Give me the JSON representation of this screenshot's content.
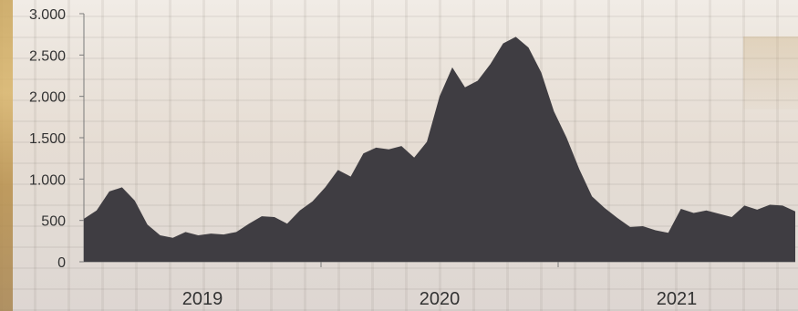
{
  "chart_data": {
    "type": "area",
    "title": "",
    "xlabel": "",
    "ylabel": "",
    "ylim": [
      0,
      3000
    ],
    "yticks": [
      0,
      500,
      1000,
      1500,
      2000,
      2500,
      3000
    ],
    "ytick_labels": [
      "0",
      "500",
      "1.000",
      "1.500",
      "2.000",
      "2.500",
      "3.000"
    ],
    "xtick_labels": [
      "2019",
      "2020",
      "2021"
    ],
    "grid": false,
    "series": [
      {
        "values": [
          520,
          620,
          850,
          900,
          740,
          450,
          320,
          290,
          360,
          320,
          340,
          330,
          360,
          460,
          550,
          540,
          460,
          620,
          730,
          900,
          1110,
          1030,
          1310,
          1380,
          1360,
          1400,
          1260,
          1450,
          2000,
          2350,
          2110,
          2190,
          2390,
          2640,
          2720,
          2590,
          2290,
          1820,
          1500,
          1120,
          790,
          650,
          530,
          420,
          430,
          380,
          350,
          640,
          590,
          620,
          580,
          540,
          680,
          630,
          690,
          680,
          610
        ],
        "color": "#3f3d42"
      }
    ],
    "colors": {
      "area": "#3f3d42",
      "axis": "#7a7a7a",
      "text": "#333333"
    }
  }
}
